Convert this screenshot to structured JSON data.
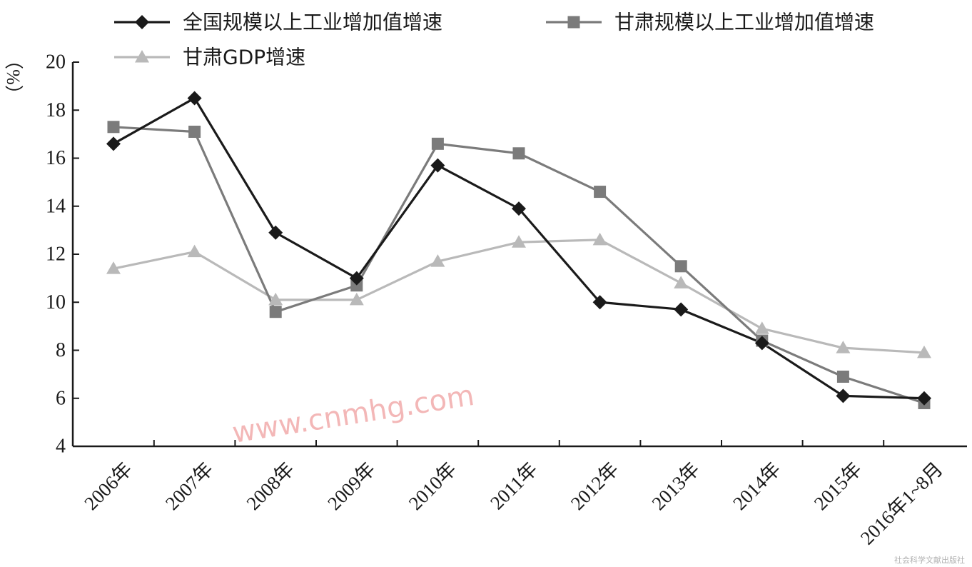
{
  "chart_data": {
    "type": "line",
    "categories": [
      "2006年",
      "2007年",
      "2008年",
      "2009年",
      "2010年",
      "2011年",
      "2012年",
      "2013年",
      "2014年",
      "2015年",
      "2016年1~8月"
    ],
    "y_unit": "（%）",
    "ylim": [
      4,
      20
    ],
    "yticks": [
      4,
      6,
      8,
      10,
      12,
      14,
      16,
      18,
      20
    ],
    "grid": false,
    "legend_position": "top",
    "series": [
      {
        "name": "全国规模以上工业增加值增速",
        "marker": "diamond",
        "color": "#1a1a1a",
        "values": [
          16.6,
          18.5,
          12.9,
          11.0,
          15.7,
          13.9,
          10.0,
          9.7,
          8.3,
          6.1,
          6.0
        ]
      },
      {
        "name": "甘肃规模以上工业增加值增速",
        "marker": "square",
        "color": "#7b7b7b",
        "values": [
          17.3,
          17.1,
          9.6,
          10.7,
          16.6,
          16.2,
          14.6,
          11.5,
          8.4,
          6.9,
          5.8
        ]
      },
      {
        "name": "甘肃GDP增速",
        "marker": "triangle",
        "color": "#b9b9b9",
        "values": [
          11.4,
          12.1,
          10.1,
          10.1,
          11.7,
          12.5,
          12.6,
          10.8,
          8.9,
          8.1,
          7.9
        ]
      }
    ]
  },
  "watermark": "www.cnmhg.com",
  "publisher": "社会科学文献出版社"
}
